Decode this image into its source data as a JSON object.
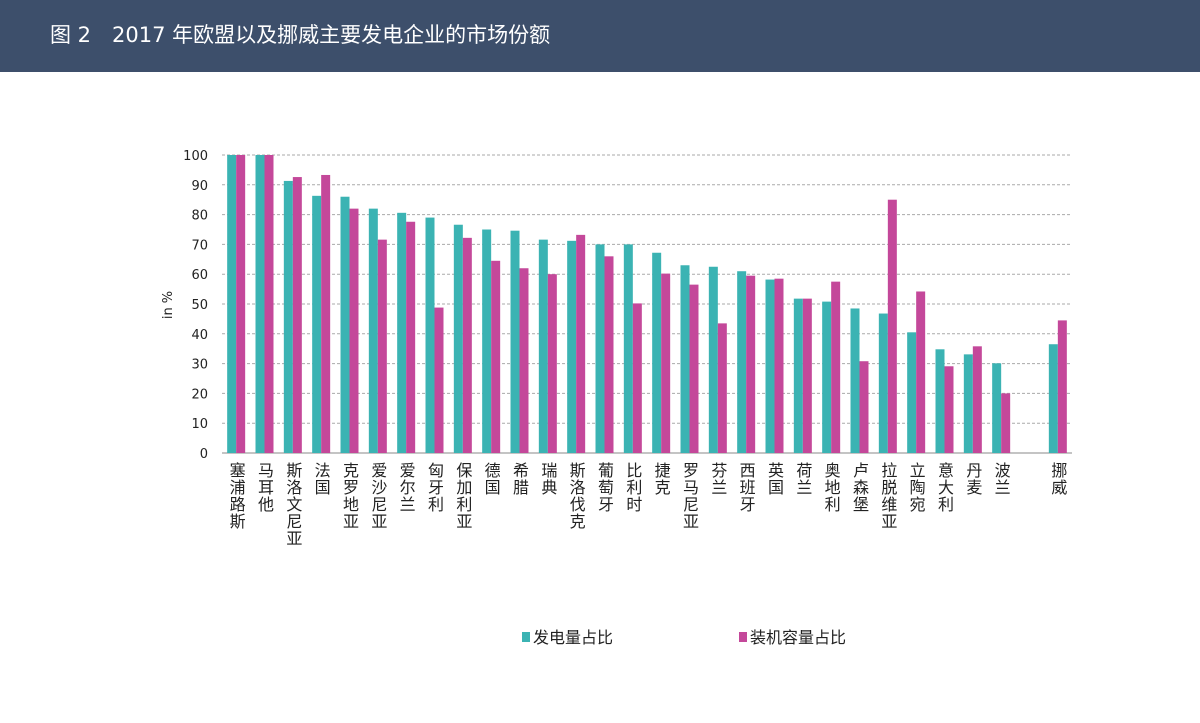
{
  "chart_data": {
    "type": "bar",
    "title": "图 2　2017 年欧盟以及挪威主要发电企业的市场份额",
    "y_label": "in %",
    "categories": [
      "塞浦路斯",
      "马耳他",
      "斯洛文尼亚",
      "法国",
      "克罗地亚",
      "爱沙尼亚",
      "爱尔兰",
      "匈牙利",
      "保加利亚",
      "德国",
      "希腊",
      "瑞典",
      "斯洛伐克",
      "葡萄牙",
      "比利时",
      "捷克",
      "罗马尼亚",
      "芬兰",
      "西班牙",
      "英国",
      "荷兰",
      "奥地利",
      "卢森堡",
      "拉脱维亚",
      "立陶宛",
      "意大利",
      "丹麦",
      "波兰",
      null,
      "挪威"
    ],
    "series": [
      {
        "name": "发电量占比",
        "color": "#3bb3b3",
        "values": [
          100,
          100,
          91.3,
          86.3,
          86,
          82,
          80.6,
          79,
          76.6,
          75,
          74.6,
          71.6,
          71.2,
          70,
          70,
          67.2,
          63,
          62.5,
          61,
          58.2,
          51.8,
          50.8,
          48.5,
          46.8,
          40.5,
          34.8,
          33.1,
          30.1,
          null,
          36.5
        ]
      },
      {
        "name": "装机容量占比",
        "color": "#c4489a",
        "values": [
          100,
          100,
          92.6,
          93.3,
          82,
          71.6,
          77.6,
          48.8,
          72.2,
          64.5,
          62,
          60,
          73.2,
          66,
          50.2,
          60.2,
          56.5,
          43.5,
          59.5,
          58.5,
          51.8,
          57.5,
          30.8,
          85,
          54.2,
          29.1,
          35.8,
          20,
          null,
          44.5
        ]
      }
    ],
    "ylim": [
      0,
      100
    ],
    "yticks": [
      0,
      10,
      20,
      30,
      40,
      50,
      60,
      70,
      80,
      90,
      100
    ],
    "grid": true
  }
}
